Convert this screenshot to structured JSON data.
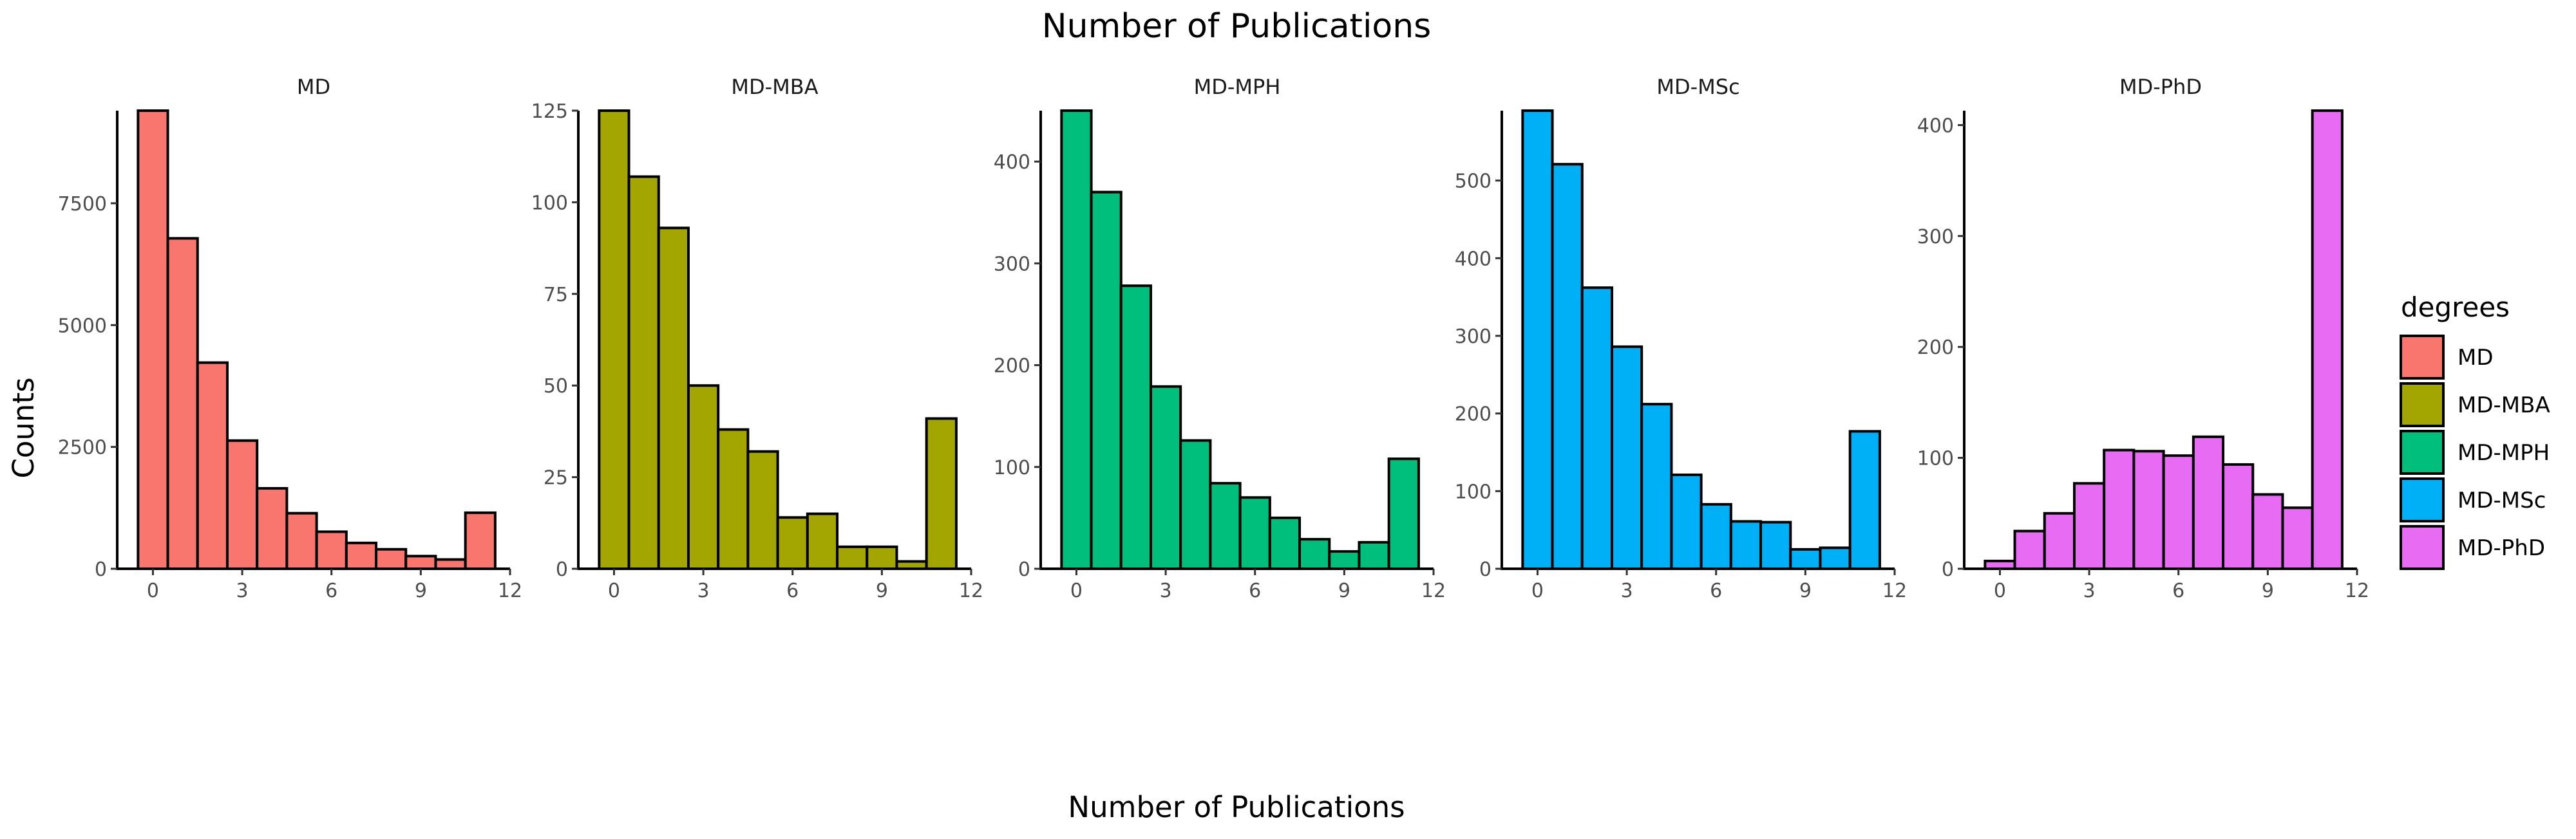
{
  "chart_data": {
    "type": "bar",
    "title": "Number of Publications",
    "xlabel": "Number of Publications",
    "ylabel": "Counts",
    "xlim": [
      -1.2,
      12
    ],
    "x_ticks": [
      0,
      3,
      6,
      9,
      12
    ],
    "bin_centers": [
      0,
      1,
      2,
      3,
      4,
      5,
      6,
      7,
      8,
      9,
      10,
      11
    ],
    "bin_width": 1,
    "grid": false,
    "legend": {
      "title": "degrees",
      "position": "right",
      "items": [
        "MD",
        "MD-MBA",
        "MD-MPH",
        "MD-MSc",
        "MD-PhD"
      ]
    },
    "facets": [
      {
        "name": "MD",
        "color": "#F8766D",
        "values": [
          9400,
          6780,
          4230,
          2630,
          1650,
          1140,
          760,
          530,
          400,
          260,
          190,
          1150
        ],
        "ylim": [
          0,
          9400
        ],
        "y_ticks": [
          0,
          2500,
          5000,
          7500
        ]
      },
      {
        "name": "MD-MBA",
        "color": "#A3A500",
        "values": [
          125,
          107,
          93,
          50,
          38,
          32,
          14,
          15,
          6,
          6,
          2,
          41
        ],
        "ylim": [
          0,
          125
        ],
        "y_ticks": [
          0,
          25,
          50,
          75,
          100,
          125
        ]
      },
      {
        "name": "MD-MPH",
        "color": "#00BF7D",
        "values": [
          450,
          370,
          278,
          179,
          126,
          84,
          70,
          50,
          29,
          17,
          26,
          108
        ],
        "ylim": [
          0,
          450
        ],
        "y_ticks": [
          0,
          100,
          200,
          300,
          400
        ]
      },
      {
        "name": "MD-MSc",
        "color": "#00B0F6",
        "values": [
          590,
          521,
          362,
          286,
          212,
          121,
          83,
          61,
          60,
          25,
          27,
          177
        ],
        "ylim": [
          0,
          590
        ],
        "y_ticks": [
          0,
          100,
          200,
          300,
          400,
          500
        ]
      },
      {
        "name": "MD-PhD",
        "color": "#E76BF3",
        "values": [
          7,
          34,
          50,
          77,
          107,
          106,
          102,
          119,
          94,
          67,
          55,
          413
        ],
        "ylim": [
          0,
          413
        ],
        "y_ticks": [
          0,
          100,
          200,
          300,
          400
        ]
      }
    ]
  }
}
